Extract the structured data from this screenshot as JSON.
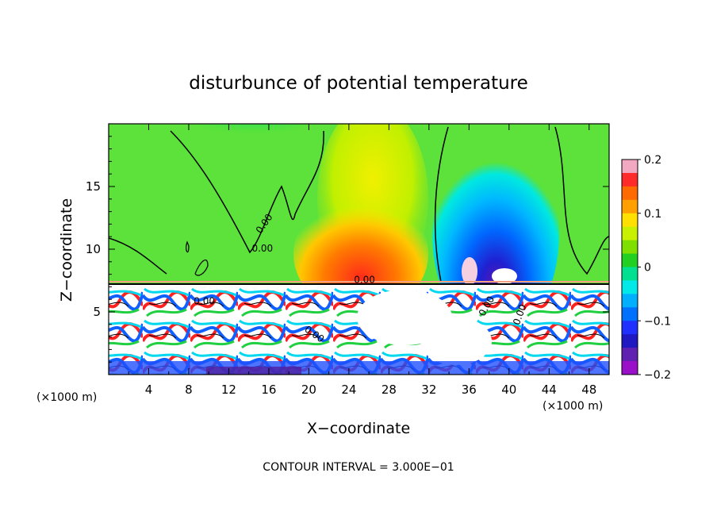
{
  "chart_data": {
    "type": "heatmap",
    "title": "disturbunce of potential temperature",
    "xlabel": "X−coordinate",
    "ylabel": "Z−coordinate",
    "x_unit_left": "(×1000 m)",
    "x_unit_right": "(×1000 m)",
    "footer": "CONTOUR INTERVAL = 3.000E−01",
    "xlim": [
      0,
      50
    ],
    "ylim": [
      0,
      20
    ],
    "x_ticks": [
      4,
      8,
      12,
      16,
      20,
      24,
      28,
      32,
      36,
      40,
      44,
      48
    ],
    "x_tick_labels": [
      "4",
      "8",
      "12",
      "16",
      "20",
      "24",
      "28",
      "32",
      "36",
      "40",
      "44",
      "48"
    ],
    "y_ticks": [
      5,
      10,
      15
    ],
    "y_tick_labels": [
      "5",
      "10",
      "15"
    ],
    "colorbar": {
      "min": -0.2,
      "max": 0.2,
      "ticks": [
        0.2,
        0.1,
        0,
        -0.1,
        -0.2
      ],
      "tick_labels": [
        "0.2",
        "0.1",
        "0",
        "−0.1",
        "−0.2"
      ],
      "colors": [
        "#f2a8c0",
        "#ff2a2a",
        "#ff6a00",
        "#ffa000",
        "#ffe000",
        "#c8f000",
        "#7fe000",
        "#22d022",
        "#00e090",
        "#00e8e8",
        "#00b0ff",
        "#0070ff",
        "#2030ff",
        "#2018c0",
        "#6020b0",
        "#9a10c8"
      ]
    },
    "contour_labels": [
      "0.00",
      "0.00",
      "0.00",
      "0.00",
      "0.00",
      "0.00",
      "0.00"
    ],
    "interface_height": 7.3
  }
}
